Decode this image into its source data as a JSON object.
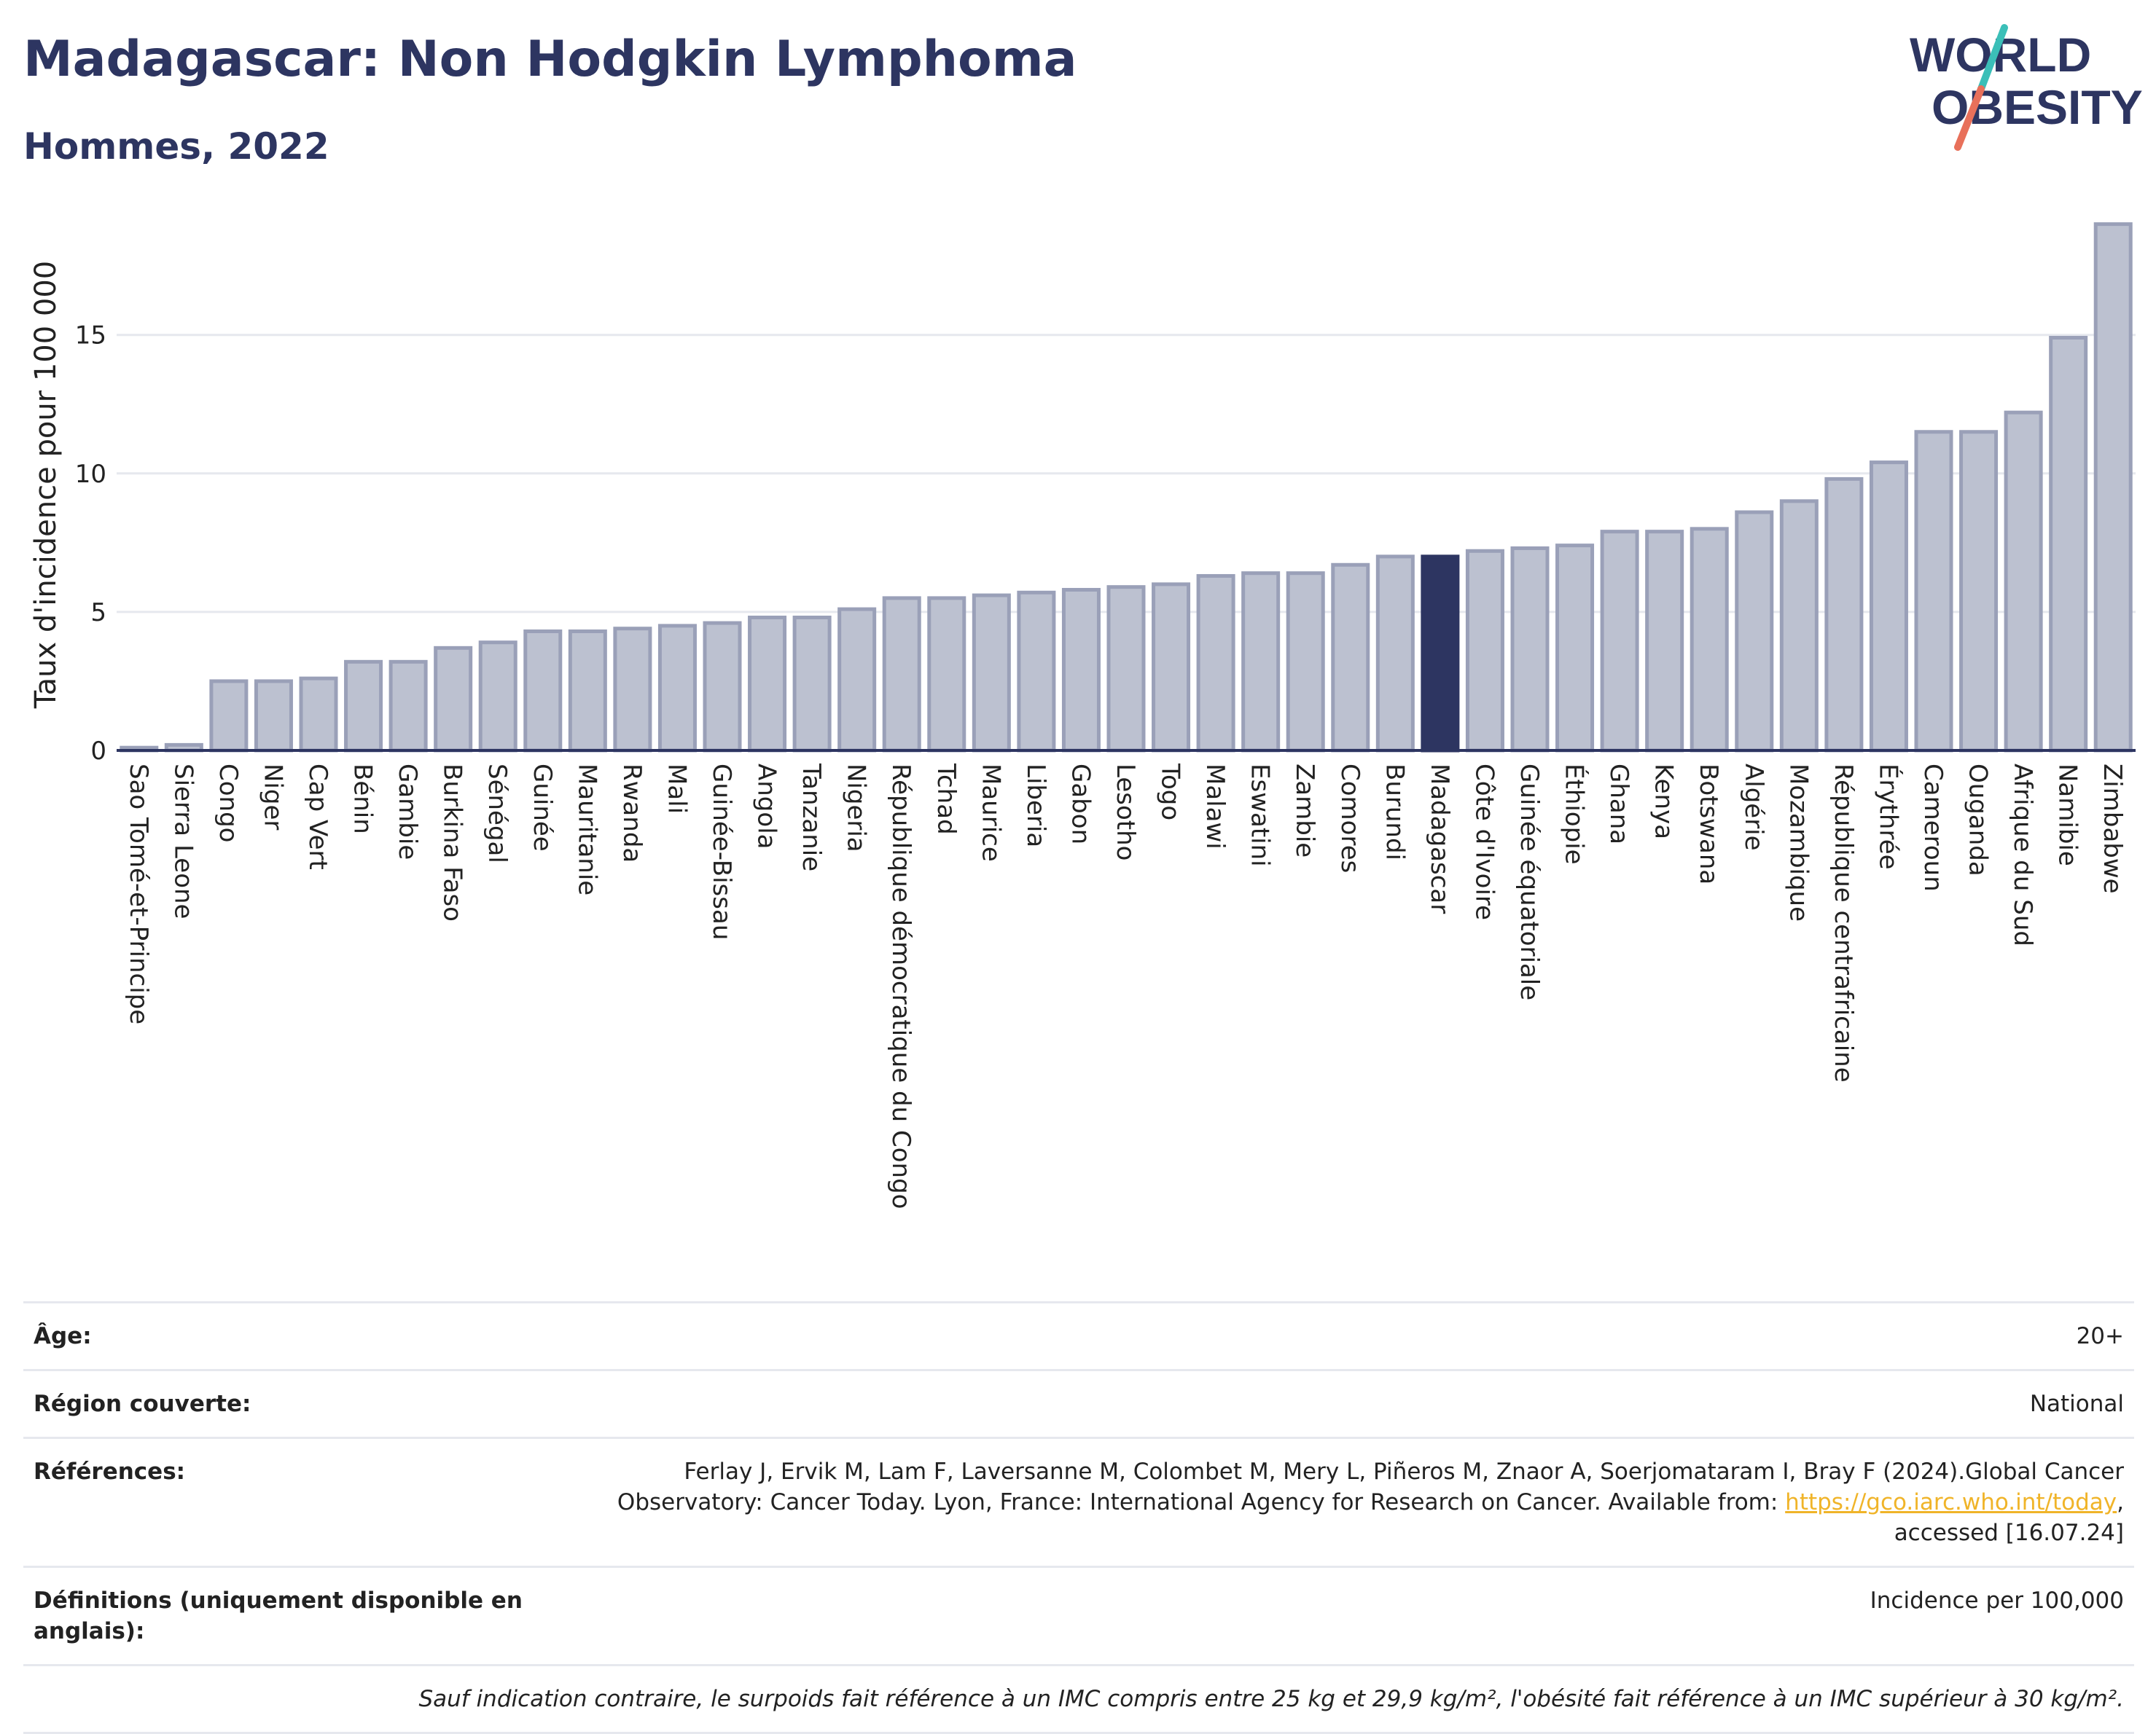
{
  "header": {
    "title": "Madagascar: Non Hodgkin Lymphoma",
    "subtitle": "Hommes, 2022"
  },
  "logo": {
    "line1": "WORLD",
    "line2": "OBESITY",
    "colors": {
      "text": "#2d3561",
      "slash_teal": "#3bbfb8",
      "slash_coral": "#e8705a"
    }
  },
  "colors": {
    "bar_default_fill": "#bcc1d0",
    "bar_default_stroke": "#9aa0b8",
    "bar_highlight": "#2d3561",
    "axis": "#2d3561",
    "grid": "#e6e8ee"
  },
  "chart_data": {
    "type": "bar",
    "title": "Madagascar: Non Hodgkin Lymphoma",
    "subtitle": "Hommes, 2022",
    "ylabel": "Taux d'incidence pour 100 000",
    "xlabel": "",
    "ylim": [
      0,
      19.2
    ],
    "yticks": [
      0,
      5,
      10,
      15
    ],
    "grid": true,
    "highlight": "Madagascar",
    "categories": [
      "Sao Tomé-et-Principe",
      "Sierra Leone",
      "Congo",
      "Niger",
      "Cap Vert",
      "Bénin",
      "Gambie",
      "Burkina Faso",
      "Sénégal",
      "Guinée",
      "Mauritanie",
      "Rwanda",
      "Mali",
      "Guinée-Bissau",
      "Angola",
      "Tanzanie",
      "Nigeria",
      "République démocratique du Congo",
      "Tchad",
      "Maurice",
      "Liberia",
      "Gabon",
      "Lesotho",
      "Togo",
      "Malawi",
      "Eswatini",
      "Zambie",
      "Comores",
      "Burundi",
      "Madagascar",
      "Côte d'Ivoire",
      "Guinée équatoriale",
      "Éthiopie",
      "Ghana",
      "Kenya",
      "Botswana",
      "Algérie",
      "Mozambique",
      "République centrafricaine",
      "Érythrée",
      "Cameroun",
      "Ouganda",
      "Afrique du Sud",
      "Namibie",
      "Zimbabwe"
    ],
    "values": [
      0.1,
      0.2,
      2.5,
      2.5,
      2.6,
      3.2,
      3.2,
      3.7,
      3.9,
      4.3,
      4.3,
      4.4,
      4.5,
      4.6,
      4.8,
      4.8,
      5.1,
      5.5,
      5.5,
      5.6,
      5.7,
      5.8,
      5.9,
      6.0,
      6.3,
      6.4,
      6.4,
      6.7,
      7.0,
      7.0,
      7.2,
      7.3,
      7.4,
      7.9,
      7.9,
      8.0,
      8.6,
      9.0,
      9.8,
      10.4,
      11.5,
      11.5,
      12.2,
      14.9,
      19.0
    ]
  },
  "info": {
    "age_label": "Âge:",
    "age_value": "20+",
    "region_label": "Région couverte:",
    "region_value": "National",
    "refs_label": "Références:",
    "refs_text_1": "Ferlay J, Ervik M, Lam F, Laversanne M, Colombet M, Mery L, Piñeros M, Znaor A, Soerjomataram I, Bray F (2024).Global Cancer Observatory: Cancer Today. Lyon, France: International Agency for Research on Cancer. Available from: ",
    "refs_link": "https://gco.iarc.who.int/today",
    "refs_text_2": ", accessed [16.07.24]",
    "defs_label": "Définitions (uniquement disponible en anglais):",
    "defs_value": "Incidence per 100,000",
    "note": "Sauf indication contraire, le surpoids fait référence à un IMC compris entre 25 kg et 29,9 kg/m², l'obésité fait référence à un IMC supérieur à 30 kg/m²."
  }
}
